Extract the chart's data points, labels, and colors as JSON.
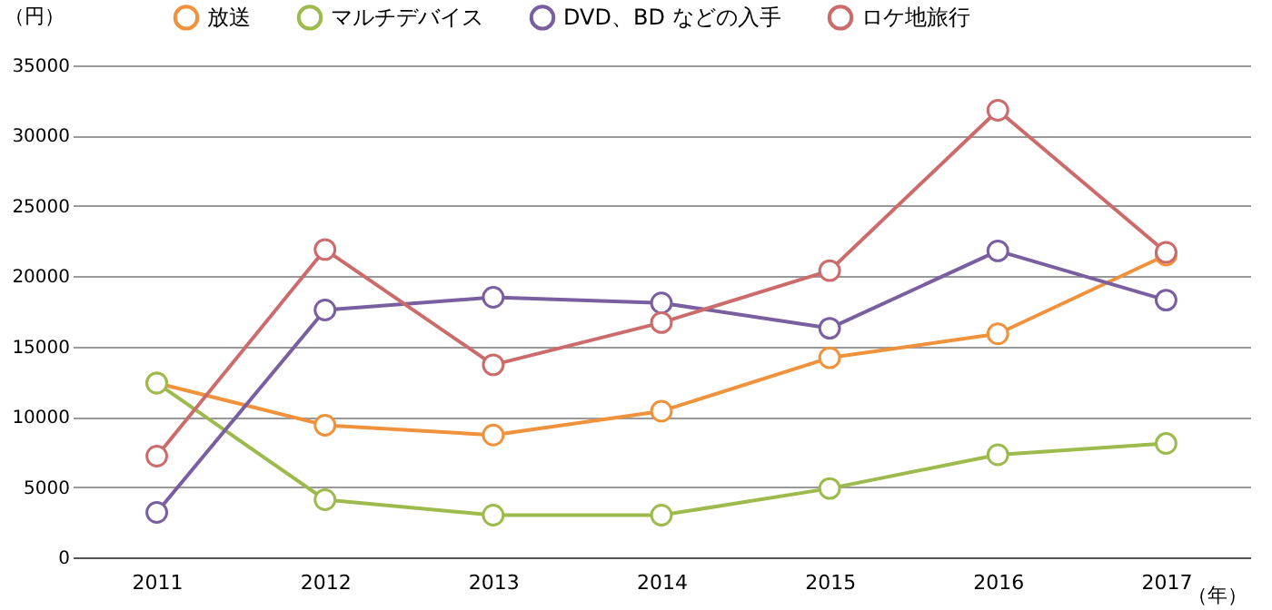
{
  "chart_data": {
    "type": "line",
    "xlabel": "（年）",
    "ylabel": "（円）",
    "categories": [
      "2011",
      "2012",
      "2013",
      "2014",
      "2015",
      "2016",
      "2017"
    ],
    "series": [
      {
        "name": "放送",
        "color": "#f0913c",
        "values": [
          12400,
          9400,
          8700,
          10400,
          14200,
          15900,
          21500
        ]
      },
      {
        "name": "マルチデバイス",
        "color": "#9cbb4c",
        "values": [
          12400,
          4100,
          3000,
          3000,
          4900,
          7300,
          8100
        ]
      },
      {
        "name": "DVD、BD などの入手",
        "color": "#7a5fa0",
        "values": [
          3200,
          17600,
          18500,
          18100,
          16300,
          21800,
          18300
        ]
      },
      {
        "name": "ロケ地旅行",
        "color": "#cc6b6b",
        "values": [
          7200,
          21900,
          13700,
          16700,
          20400,
          31800,
          21700
        ]
      }
    ],
    "ylim": [
      0,
      35000
    ],
    "yticks": [
      0,
      5000,
      10000,
      15000,
      20000,
      25000,
      30000,
      35000
    ],
    "grid": "y",
    "legend": "top",
    "marker": "circle",
    "line_style": "solid"
  }
}
